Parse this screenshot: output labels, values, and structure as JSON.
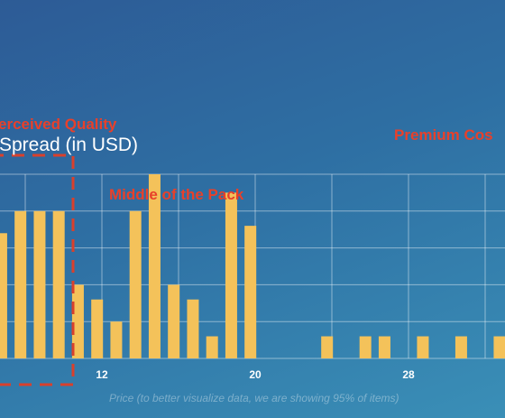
{
  "chart_data": {
    "type": "bar",
    "title": "Spread (in USD)",
    "xlabel": "Price (to better visualize data, we are showing 95% of items)",
    "x_ticks": [
      "12",
      "20",
      "28"
    ],
    "annotations": [
      {
        "text": "erceived Quality"
      },
      {
        "text": "Middle of the Pack"
      },
      {
        "text": "Premium Cos"
      }
    ],
    "xlim": [
      6.6,
      33
    ],
    "ylim": [
      0,
      5
    ],
    "grid": true,
    "x": [
      6.75,
      7.75,
      8.75,
      9.75,
      10.75,
      11.75,
      12.75,
      13.75,
      14.75,
      15.75,
      16.75,
      17.75,
      18.75,
      19.75,
      23.75,
      25.75,
      26.75,
      28.75,
      30.75,
      32.75
    ],
    "values": [
      3.4,
      4.0,
      4.0,
      4.0,
      2.0,
      1.6,
      1.0,
      4.0,
      5.0,
      2.0,
      1.6,
      0.6,
      4.5,
      3.6,
      0.6,
      0.6,
      0.6,
      0.6,
      0.6,
      0.6
    ]
  }
}
